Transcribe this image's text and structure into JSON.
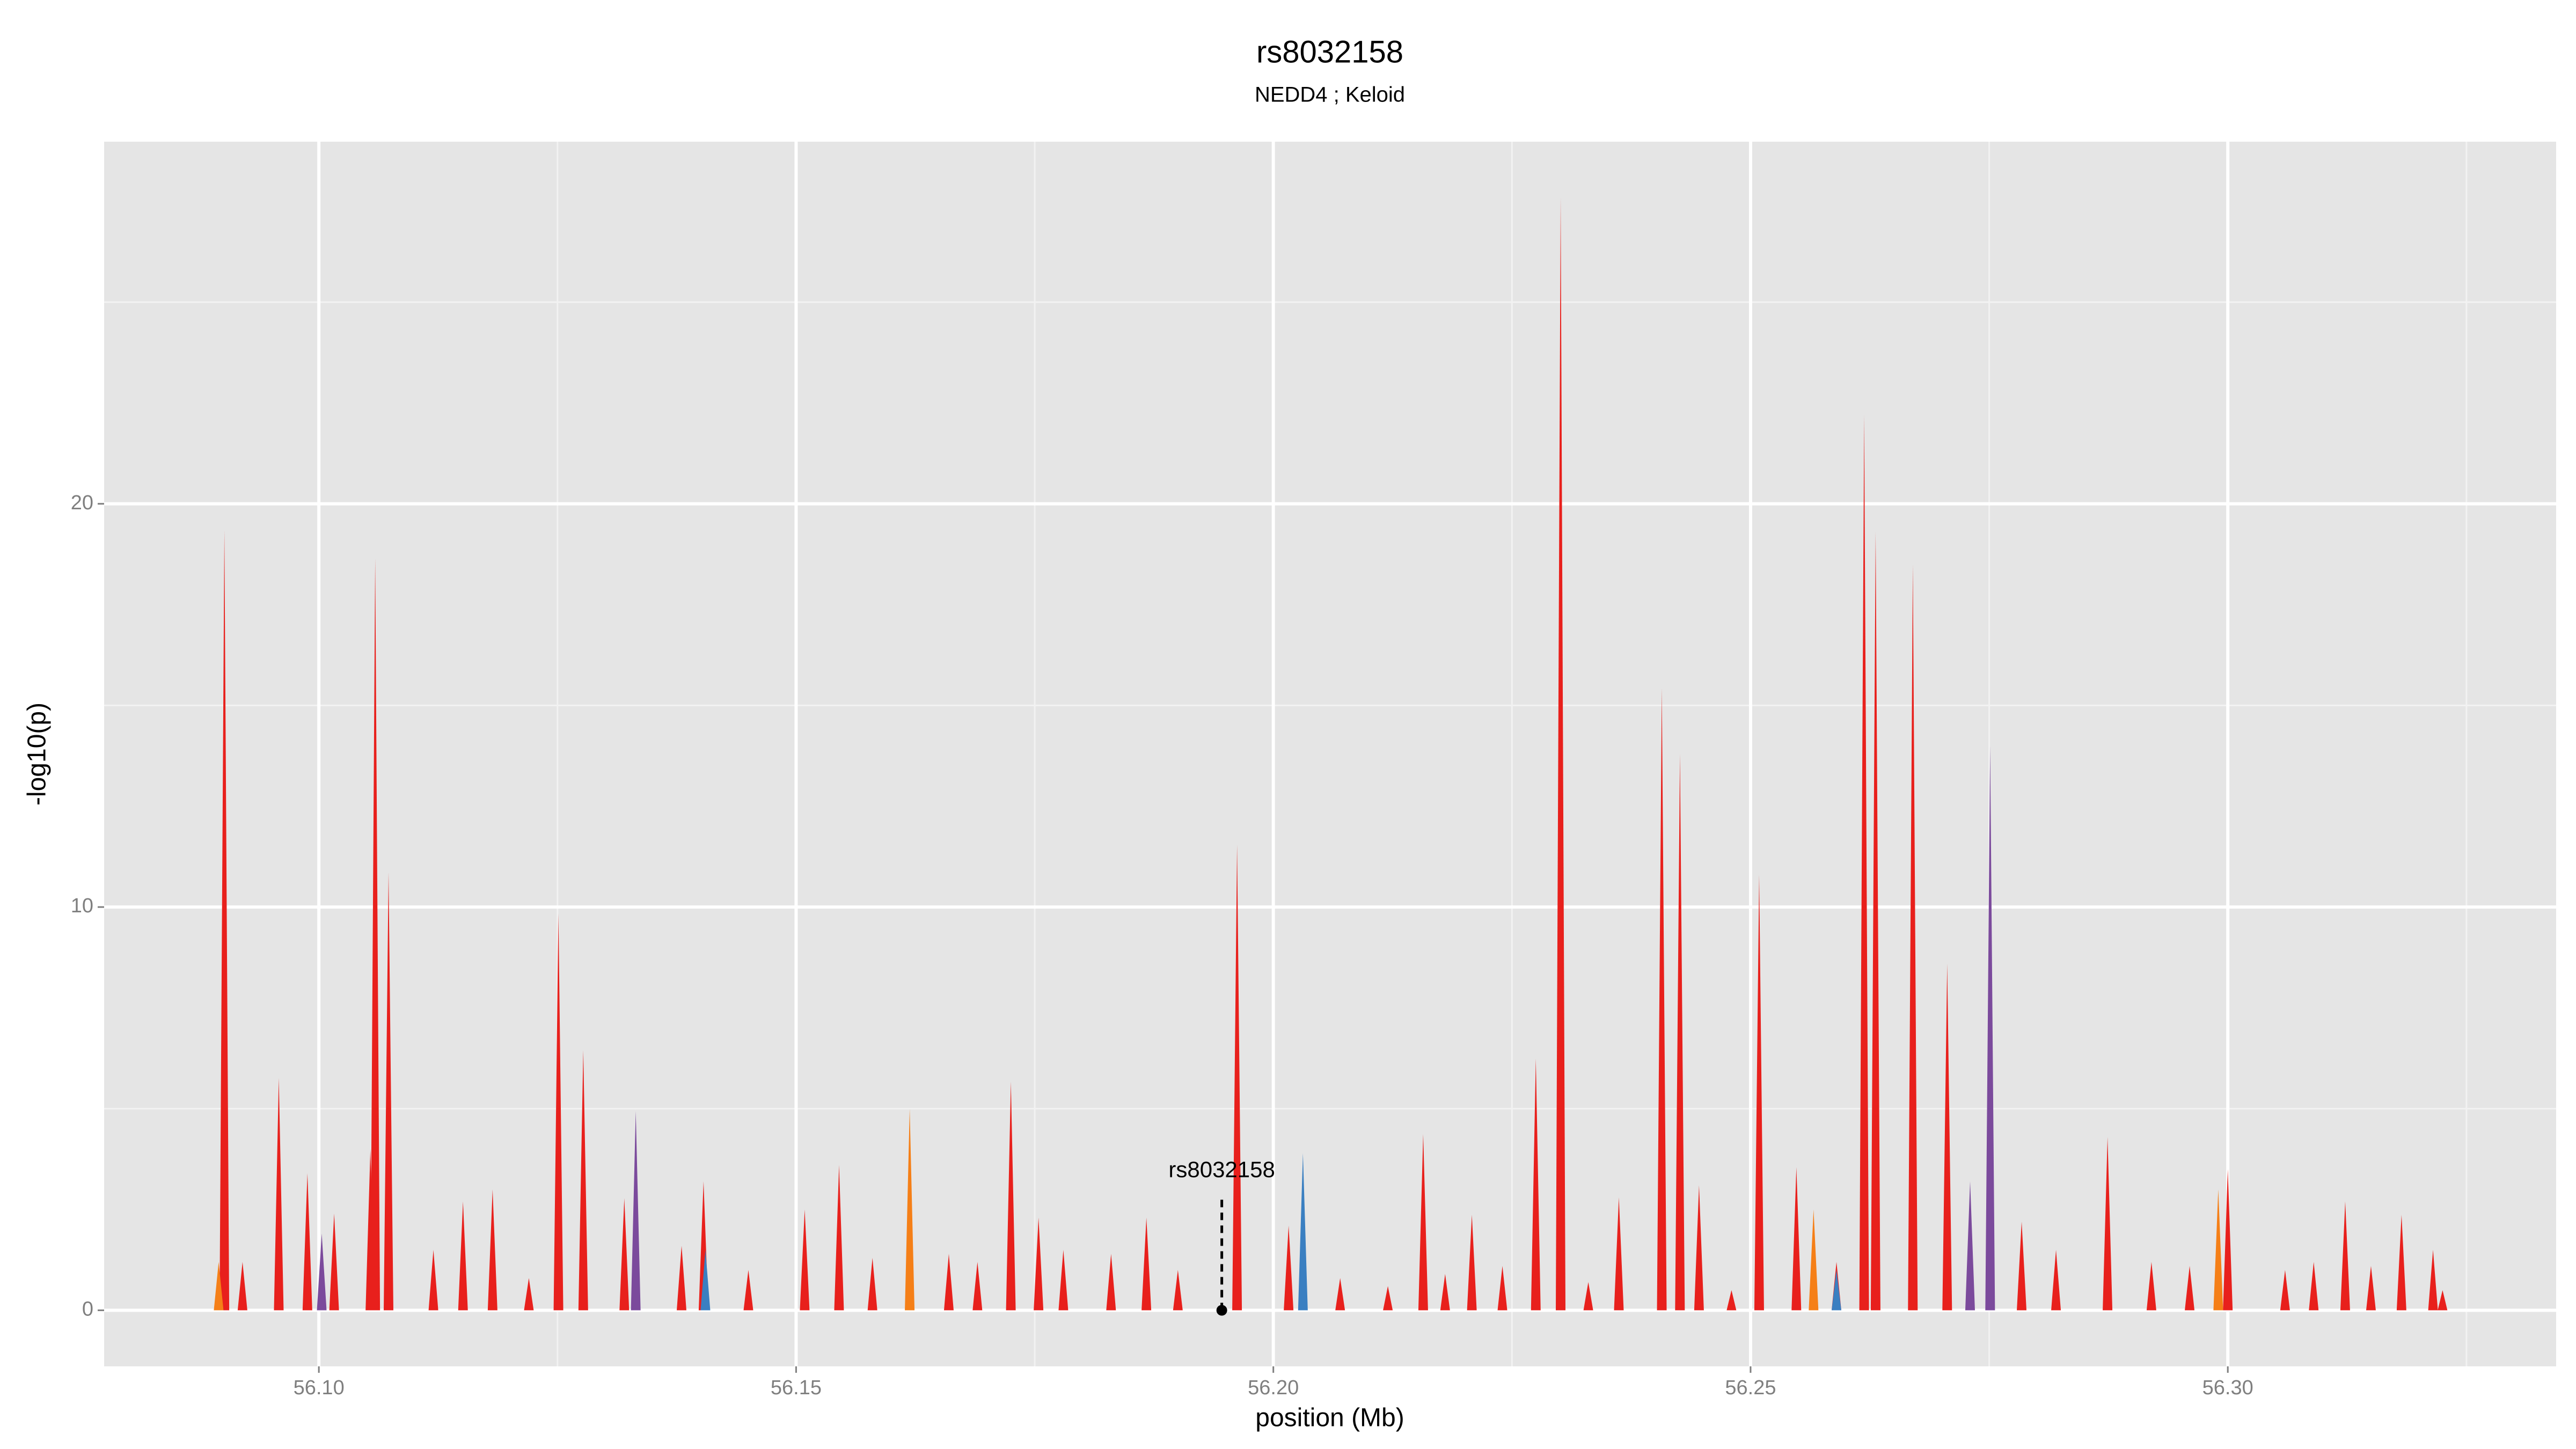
{
  "chart_data": {
    "type": "area",
    "title": "rs8032158",
    "subtitle": "NEDD4 ; Keloid",
    "x_label": "position (Mb)",
    "y_label": "-log10(p)",
    "xlim": [
      56.0775,
      56.3344
    ],
    "ylim": [
      -1.39,
      28.98
    ],
    "xticks": [
      {
        "value": 56.1,
        "label": "56.10"
      },
      {
        "value": 56.15,
        "label": "56.15"
      },
      {
        "value": 56.2,
        "label": "56.20"
      },
      {
        "value": 56.25,
        "label": "56.25"
      },
      {
        "value": 56.3,
        "label": "56.30"
      }
    ],
    "yticks": [
      0,
      10,
      20
    ],
    "xminor": [
      56.125,
      56.175,
      56.225,
      56.275,
      56.325
    ],
    "yminor": [
      5,
      15,
      25
    ],
    "grid": true,
    "series": [
      {
        "color": "#e8201c",
        "x": [
          56.0901,
          56.092,
          56.0958,
          56.0988,
          56.1016,
          56.1054,
          56.1059,
          56.1073,
          56.112,
          56.1151,
          56.1182,
          56.122,
          56.1251,
          56.1277,
          56.132,
          56.138,
          56.1403,
          56.145,
          56.1509,
          56.1545,
          56.158,
          56.166,
          56.169,
          56.1725,
          56.1754,
          56.178,
          56.183,
          56.1867,
          56.19,
          56.1962,
          56.2016,
          56.207,
          56.212,
          56.2157,
          56.218,
          56.2208,
          56.224,
          56.2275,
          56.2301,
          56.233,
          56.2362,
          56.2407,
          56.2426,
          56.2446,
          56.248,
          56.2509,
          56.2548,
          56.259,
          56.2619,
          56.2631,
          56.267,
          56.2706,
          56.2784,
          56.282,
          56.2874,
          56.292,
          56.296,
          56.3,
          56.306,
          56.309,
          56.3123,
          56.315,
          56.3182,
          56.3215,
          56.3225
        ],
        "values": [
          19.35,
          1.2,
          5.76,
          3.4,
          2.4,
          4.0,
          18.65,
          10.86,
          1.5,
          2.7,
          3.0,
          0.8,
          9.84,
          6.45,
          2.78,
          1.6,
          3.2,
          1.0,
          2.5,
          3.6,
          1.3,
          1.4,
          1.2,
          5.67,
          2.3,
          1.5,
          1.4,
          2.3,
          1.0,
          11.55,
          2.1,
          0.8,
          0.6,
          4.37,
          0.9,
          2.37,
          1.1,
          6.24,
          27.6,
          0.7,
          2.8,
          15.43,
          13.8,
          3.1,
          0.5,
          10.8,
          3.55,
          1.2,
          22.2,
          19.3,
          18.5,
          8.6,
          2.2,
          1.5,
          4.3,
          1.2,
          1.1,
          3.5,
          1.0,
          1.2,
          2.7,
          1.1,
          2.37,
          1.5,
          0.5
        ]
      },
      {
        "color": "#7b4a9c",
        "x": [
          56.1332,
          56.273,
          56.2751,
          56.1003
        ],
        "values": [
          4.94,
          3.2,
          14.0,
          1.9
        ]
      },
      {
        "color": "#3a7fc1",
        "x": [
          56.2031,
          56.259,
          56.1405
        ],
        "values": [
          3.9,
          1.0,
          1.5
        ]
      },
      {
        "color": "#f57f17",
        "x": [
          56.1619,
          56.2566,
          56.299,
          56.0895
        ],
        "values": [
          5.0,
          2.5,
          3.0,
          1.2
        ]
      }
    ],
    "annotation": {
      "text": "rs8032158",
      "x": 56.1946,
      "y": 0
    }
  }
}
